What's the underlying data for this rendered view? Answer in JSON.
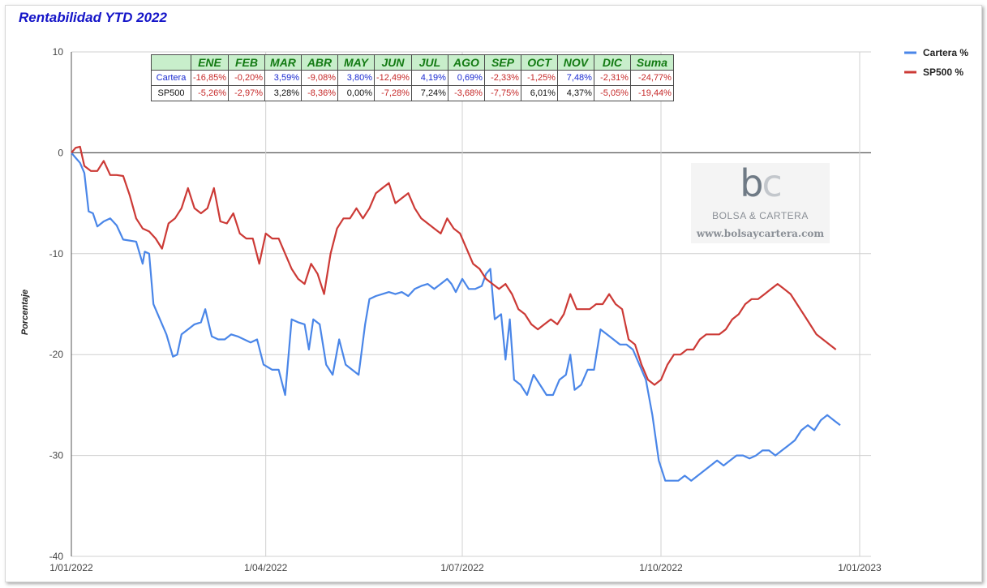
{
  "title": "Rentabilidad YTD 2022",
  "chart_data": {
    "type": "line",
    "ylabel": "Porcentaje",
    "ylim": [
      -40,
      10
    ],
    "yticks": [
      10,
      0,
      -10,
      -20,
      -30,
      -40
    ],
    "ytick_labels": [
      "10",
      "0",
      "-10",
      "-20",
      "-30",
      "-40"
    ],
    "xlim": [
      "2022-01-01",
      "2023-01-01"
    ],
    "xticks": [
      "2022-01-01",
      "2022-04-01",
      "2022-07-01",
      "2022-10-01",
      "2023-01-01"
    ],
    "xtick_labels": [
      "1/01/2022",
      "1/04/2022",
      "1/07/2022",
      "1/10/2022",
      "1/01/2023"
    ],
    "grid": true,
    "legend_position": "top-right",
    "series": [
      {
        "name": "Cartera %",
        "color": "#4a86e8",
        "points": [
          [
            "2022-01-01",
            0
          ],
          [
            "2022-01-03",
            -0.5
          ],
          [
            "2022-01-05",
            -1.0
          ],
          [
            "2022-01-07",
            -2.0
          ],
          [
            "2022-01-09",
            -5.8
          ],
          [
            "2022-01-11",
            -6.0
          ],
          [
            "2022-01-13",
            -7.3
          ],
          [
            "2022-01-16",
            -6.8
          ],
          [
            "2022-01-19",
            -6.5
          ],
          [
            "2022-01-22",
            -7.2
          ],
          [
            "2022-01-25",
            -8.6
          ],
          [
            "2022-01-28",
            -8.7
          ],
          [
            "2022-01-31",
            -8.8
          ],
          [
            "2022-02-03",
            -11.0
          ],
          [
            "2022-02-04",
            -9.8
          ],
          [
            "2022-02-06",
            -10.0
          ],
          [
            "2022-02-08",
            -15.0
          ],
          [
            "2022-02-11",
            -16.5
          ],
          [
            "2022-02-14",
            -18.0
          ],
          [
            "2022-02-17",
            -20.2
          ],
          [
            "2022-02-19",
            -20.0
          ],
          [
            "2022-02-21",
            -18.0
          ],
          [
            "2022-02-24",
            -17.5
          ],
          [
            "2022-02-27",
            -17.0
          ],
          [
            "2022-03-02",
            -16.8
          ],
          [
            "2022-03-04",
            -15.5
          ],
          [
            "2022-03-07",
            -18.2
          ],
          [
            "2022-03-10",
            -18.5
          ],
          [
            "2022-03-13",
            -18.5
          ],
          [
            "2022-03-16",
            -18.0
          ],
          [
            "2022-03-19",
            -18.2
          ],
          [
            "2022-03-22",
            -18.5
          ],
          [
            "2022-03-25",
            -18.8
          ],
          [
            "2022-03-28",
            -18.5
          ],
          [
            "2022-03-31",
            -21.0
          ],
          [
            "2022-04-04",
            -21.5
          ],
          [
            "2022-04-07",
            -21.5
          ],
          [
            "2022-04-10",
            -24.0
          ],
          [
            "2022-04-13",
            -16.5
          ],
          [
            "2022-04-16",
            -16.8
          ],
          [
            "2022-04-19",
            -17.0
          ],
          [
            "2022-04-21",
            -19.5
          ],
          [
            "2022-04-23",
            -16.5
          ],
          [
            "2022-04-26",
            -17.0
          ],
          [
            "2022-04-29",
            -21.0
          ],
          [
            "2022-05-02",
            -22.0
          ],
          [
            "2022-05-05",
            -18.5
          ],
          [
            "2022-05-08",
            -21.0
          ],
          [
            "2022-05-11",
            -21.5
          ],
          [
            "2022-05-14",
            -22.0
          ],
          [
            "2022-05-17",
            -17.0
          ],
          [
            "2022-05-19",
            -14.5
          ],
          [
            "2022-05-22",
            -14.2
          ],
          [
            "2022-05-25",
            -14.0
          ],
          [
            "2022-05-28",
            -13.8
          ],
          [
            "2022-05-31",
            -14.0
          ],
          [
            "2022-06-03",
            -13.8
          ],
          [
            "2022-06-06",
            -14.2
          ],
          [
            "2022-06-09",
            -13.5
          ],
          [
            "2022-06-12",
            -13.2
          ],
          [
            "2022-06-15",
            -13.0
          ],
          [
            "2022-06-18",
            -13.5
          ],
          [
            "2022-06-21",
            -13.0
          ],
          [
            "2022-06-24",
            -12.5
          ],
          [
            "2022-06-26",
            -13.0
          ],
          [
            "2022-06-28",
            -13.8
          ],
          [
            "2022-07-01",
            -12.5
          ],
          [
            "2022-07-04",
            -13.5
          ],
          [
            "2022-07-07",
            -13.5
          ],
          [
            "2022-07-10",
            -13.2
          ],
          [
            "2022-07-12",
            -12.0
          ],
          [
            "2022-07-14",
            -11.5
          ],
          [
            "2022-07-16",
            -16.5
          ],
          [
            "2022-07-19",
            -16.0
          ],
          [
            "2022-07-21",
            -20.5
          ],
          [
            "2022-07-23",
            -16.5
          ],
          [
            "2022-07-25",
            -22.5
          ],
          [
            "2022-07-28",
            -23.0
          ],
          [
            "2022-07-31",
            -24.0
          ],
          [
            "2022-08-03",
            -22.0
          ],
          [
            "2022-08-06",
            -23.0
          ],
          [
            "2022-08-09",
            -24.0
          ],
          [
            "2022-08-12",
            -24.0
          ],
          [
            "2022-08-15",
            -22.5
          ],
          [
            "2022-08-18",
            -22.0
          ],
          [
            "2022-08-20",
            -20.0
          ],
          [
            "2022-08-22",
            -23.5
          ],
          [
            "2022-08-25",
            -23.0
          ],
          [
            "2022-08-28",
            -21.5
          ],
          [
            "2022-08-31",
            -21.5
          ],
          [
            "2022-09-03",
            -17.5
          ],
          [
            "2022-09-06",
            -18.0
          ],
          [
            "2022-09-09",
            -18.5
          ],
          [
            "2022-09-12",
            -19.0
          ],
          [
            "2022-09-15",
            -19.0
          ],
          [
            "2022-09-18",
            -19.5
          ],
          [
            "2022-09-21",
            -21.0
          ],
          [
            "2022-09-24",
            -22.5
          ],
          [
            "2022-09-27",
            -26.0
          ],
          [
            "2022-09-30",
            -30.5
          ],
          [
            "2022-10-03",
            -32.5
          ],
          [
            "2022-10-06",
            -32.5
          ],
          [
            "2022-10-09",
            -32.5
          ],
          [
            "2022-10-12",
            -32.0
          ],
          [
            "2022-10-15",
            -32.5
          ],
          [
            "2022-10-18",
            -32.0
          ],
          [
            "2022-10-21",
            -31.5
          ],
          [
            "2022-10-24",
            -31.0
          ],
          [
            "2022-10-27",
            -30.5
          ],
          [
            "2022-10-30",
            -31.0
          ],
          [
            "2022-11-02",
            -30.5
          ],
          [
            "2022-11-05",
            -30.0
          ],
          [
            "2022-11-08",
            -30.0
          ],
          [
            "2022-11-11",
            -30.3
          ],
          [
            "2022-11-14",
            -30.0
          ],
          [
            "2022-11-17",
            -29.5
          ],
          [
            "2022-11-20",
            -29.5
          ],
          [
            "2022-11-23",
            -30.0
          ],
          [
            "2022-11-26",
            -29.5
          ],
          [
            "2022-11-29",
            -29.0
          ],
          [
            "2022-12-02",
            -28.5
          ],
          [
            "2022-12-05",
            -27.5
          ],
          [
            "2022-12-08",
            -27.0
          ],
          [
            "2022-12-11",
            -27.5
          ],
          [
            "2022-12-14",
            -26.5
          ],
          [
            "2022-12-17",
            -26.0
          ],
          [
            "2022-12-20",
            -26.5
          ],
          [
            "2022-12-23",
            -27.0
          ]
        ]
      },
      {
        "name": "SP500 %",
        "color": "#cc3a36",
        "points": [
          [
            "2022-01-01",
            0
          ],
          [
            "2022-01-03",
            0.5
          ],
          [
            "2022-01-05",
            0.6
          ],
          [
            "2022-01-07",
            -1.3
          ],
          [
            "2022-01-10",
            -1.8
          ],
          [
            "2022-01-13",
            -1.8
          ],
          [
            "2022-01-16",
            -0.8
          ],
          [
            "2022-01-19",
            -2.2
          ],
          [
            "2022-01-22",
            -2.2
          ],
          [
            "2022-01-25",
            -2.3
          ],
          [
            "2022-01-28",
            -4.2
          ],
          [
            "2022-01-31",
            -6.5
          ],
          [
            "2022-02-03",
            -7.5
          ],
          [
            "2022-02-06",
            -7.8
          ],
          [
            "2022-02-09",
            -8.5
          ],
          [
            "2022-02-12",
            -9.5
          ],
          [
            "2022-02-15",
            -7.0
          ],
          [
            "2022-02-18",
            -6.5
          ],
          [
            "2022-02-21",
            -5.5
          ],
          [
            "2022-02-24",
            -3.5
          ],
          [
            "2022-02-27",
            -5.5
          ],
          [
            "2022-03-02",
            -6.0
          ],
          [
            "2022-03-05",
            -5.5
          ],
          [
            "2022-03-08",
            -3.5
          ],
          [
            "2022-03-11",
            -6.8
          ],
          [
            "2022-03-14",
            -7.0
          ],
          [
            "2022-03-17",
            -6.0
          ],
          [
            "2022-03-20",
            -8.0
          ],
          [
            "2022-03-23",
            -8.5
          ],
          [
            "2022-03-26",
            -8.5
          ],
          [
            "2022-03-29",
            -11.0
          ],
          [
            "2022-04-01",
            -8.0
          ],
          [
            "2022-04-04",
            -8.5
          ],
          [
            "2022-04-07",
            -8.5
          ],
          [
            "2022-04-10",
            -10.0
          ],
          [
            "2022-04-13",
            -11.5
          ],
          [
            "2022-04-16",
            -12.5
          ],
          [
            "2022-04-19",
            -13.0
          ],
          [
            "2022-04-22",
            -11.0
          ],
          [
            "2022-04-25",
            -12.0
          ],
          [
            "2022-04-28",
            -14.0
          ],
          [
            "2022-05-01",
            -10.0
          ],
          [
            "2022-05-04",
            -7.5
          ],
          [
            "2022-05-07",
            -6.5
          ],
          [
            "2022-05-10",
            -6.5
          ],
          [
            "2022-05-13",
            -5.5
          ],
          [
            "2022-05-16",
            -6.5
          ],
          [
            "2022-05-19",
            -5.5
          ],
          [
            "2022-05-22",
            -4.0
          ],
          [
            "2022-05-25",
            -3.5
          ],
          [
            "2022-05-28",
            -3.0
          ],
          [
            "2022-05-31",
            -5.0
          ],
          [
            "2022-06-03",
            -4.5
          ],
          [
            "2022-06-06",
            -4.0
          ],
          [
            "2022-06-09",
            -5.5
          ],
          [
            "2022-06-12",
            -6.5
          ],
          [
            "2022-06-15",
            -7.0
          ],
          [
            "2022-06-18",
            -7.5
          ],
          [
            "2022-06-21",
            -8.0
          ],
          [
            "2022-06-24",
            -6.5
          ],
          [
            "2022-06-27",
            -7.5
          ],
          [
            "2022-06-30",
            -8.0
          ],
          [
            "2022-07-03",
            -9.5
          ],
          [
            "2022-07-06",
            -11.0
          ],
          [
            "2022-07-09",
            -11.5
          ],
          [
            "2022-07-12",
            -12.5
          ],
          [
            "2022-07-15",
            -13.0
          ],
          [
            "2022-07-18",
            -13.5
          ],
          [
            "2022-07-21",
            -13.0
          ],
          [
            "2022-07-24",
            -14.0
          ],
          [
            "2022-07-27",
            -15.5
          ],
          [
            "2022-07-30",
            -16.0
          ],
          [
            "2022-08-02",
            -17.0
          ],
          [
            "2022-08-05",
            -17.5
          ],
          [
            "2022-08-08",
            -17.0
          ],
          [
            "2022-08-11",
            -16.5
          ],
          [
            "2022-08-14",
            -17.0
          ],
          [
            "2022-08-17",
            -16.0
          ],
          [
            "2022-08-20",
            -14.0
          ],
          [
            "2022-08-23",
            -15.5
          ],
          [
            "2022-08-26",
            -15.5
          ],
          [
            "2022-08-29",
            -15.5
          ],
          [
            "2022-09-01",
            -15.0
          ],
          [
            "2022-09-04",
            -15.0
          ],
          [
            "2022-09-07",
            -14.0
          ],
          [
            "2022-09-10",
            -15.0
          ],
          [
            "2022-09-13",
            -15.5
          ],
          [
            "2022-09-16",
            -18.5
          ],
          [
            "2022-09-19",
            -19.0
          ],
          [
            "2022-09-22",
            -21.0
          ],
          [
            "2022-09-25",
            -22.5
          ],
          [
            "2022-09-28",
            -23.0
          ],
          [
            "2022-10-01",
            -22.5
          ],
          [
            "2022-10-04",
            -21.0
          ],
          [
            "2022-10-07",
            -20.0
          ],
          [
            "2022-10-10",
            -20.0
          ],
          [
            "2022-10-13",
            -19.5
          ],
          [
            "2022-10-16",
            -19.5
          ],
          [
            "2022-10-19",
            -18.5
          ],
          [
            "2022-10-22",
            -18.0
          ],
          [
            "2022-10-25",
            -18.0
          ],
          [
            "2022-10-28",
            -18.0
          ],
          [
            "2022-10-31",
            -17.5
          ],
          [
            "2022-11-03",
            -16.5
          ],
          [
            "2022-11-06",
            -16.0
          ],
          [
            "2022-11-09",
            -15.0
          ],
          [
            "2022-11-12",
            -14.5
          ],
          [
            "2022-11-15",
            -14.5
          ],
          [
            "2022-11-18",
            -14.0
          ],
          [
            "2022-11-21",
            -13.5
          ],
          [
            "2022-11-24",
            -13.0
          ],
          [
            "2022-11-27",
            -13.5
          ],
          [
            "2022-11-30",
            -14.0
          ],
          [
            "2022-12-03",
            -15.0
          ],
          [
            "2022-12-06",
            -16.0
          ],
          [
            "2022-12-09",
            -17.0
          ],
          [
            "2022-12-12",
            -18.0
          ],
          [
            "2022-12-15",
            -18.5
          ],
          [
            "2022-12-18",
            -19.0
          ],
          [
            "2022-12-21",
            -19.5
          ]
        ]
      }
    ]
  },
  "table": {
    "headers": [
      "",
      "ENE",
      "FEB",
      "MAR",
      "ABR",
      "MAY",
      "JUN",
      "JUL",
      "AGO",
      "SEP",
      "OCT",
      "NOV",
      "DIC",
      "Suma"
    ],
    "rows": [
      {
        "label": "Cartera",
        "values": [
          "-16,85%",
          "-0,20%",
          "3,59%",
          "-9,08%",
          "3,80%",
          "-12,49%",
          "4,19%",
          "0,69%",
          "-2,33%",
          "-1,25%",
          "7,48%",
          "-2,31%",
          "-24,77%"
        ]
      },
      {
        "label": "SP500",
        "values": [
          "-5,26%",
          "-2,97%",
          "3,28%",
          "-8,36%",
          "0,00%",
          "-7,28%",
          "7,24%",
          "-3,68%",
          "-7,75%",
          "6,01%",
          "4,37%",
          "-5,05%",
          "-19,44%"
        ]
      }
    ]
  },
  "watermark": {
    "logo": "bc",
    "name": "BOLSA & CARTERA",
    "url": "www.bolsaycartera.com"
  }
}
